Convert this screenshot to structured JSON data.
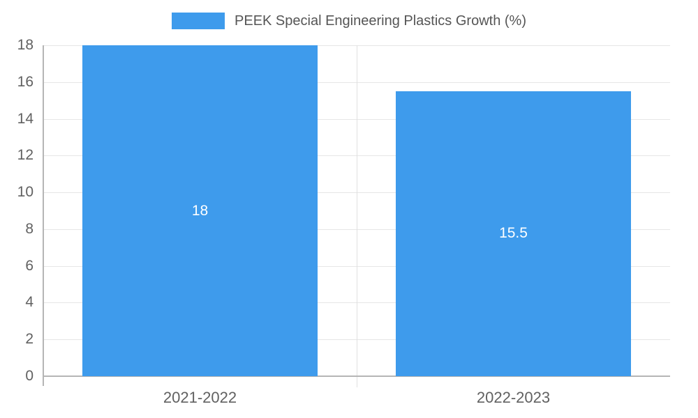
{
  "chart_data": {
    "type": "bar",
    "title": "PEEK Special Engineering Plastics Growth (%)",
    "categories": [
      "2021-2022",
      "2022-2023"
    ],
    "values": [
      18,
      15.5
    ],
    "value_labels": [
      "18",
      "15.5"
    ],
    "xlabel": "",
    "ylabel": "",
    "ylim": [
      0,
      18
    ],
    "ytick_step": 2,
    "yticks": [
      0,
      2,
      4,
      6,
      8,
      10,
      12,
      14,
      16,
      18
    ],
    "grid": "horizontal",
    "legend_position": "top-center",
    "bar_color": "#3e9bec",
    "label_color": "#ffffff",
    "axis_text_color": "#616161",
    "legend_text_color": "#555555",
    "gridline_color": "#e6e6e6",
    "background_color": "#ffffff"
  }
}
